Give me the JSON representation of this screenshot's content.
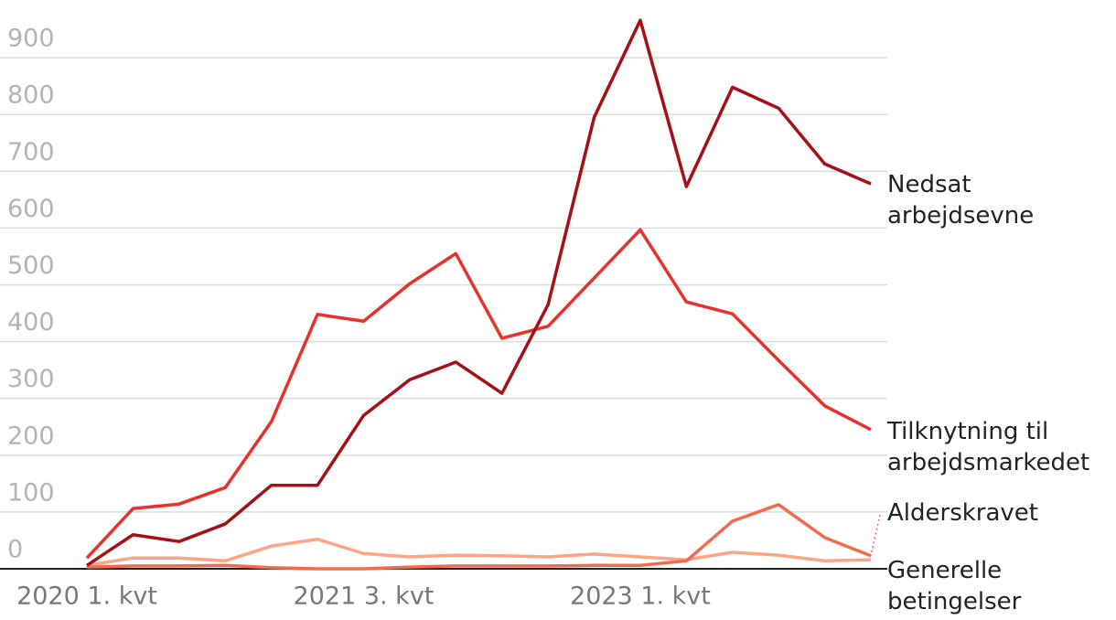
{
  "chart_data": {
    "type": "line",
    "categories": [
      "2020 1. kvt",
      null,
      null,
      null,
      null,
      null,
      "2021 3. kvt",
      null,
      null,
      null,
      null,
      null,
      "2023 1. kvt",
      null,
      null,
      null,
      null,
      null
    ],
    "series": [
      {
        "name": "Nedsat\narbejdsevne",
        "color": "#a50f15",
        "values": [
          6,
          60,
          48,
          79,
          147,
          147,
          270,
          333,
          364,
          309,
          465,
          795,
          966,
          673,
          848,
          811,
          713,
          678
        ]
      },
      {
        "name": "Tilknytning til\narbejdsmarkedet",
        "color": "#e8312a",
        "values": [
          19,
          106,
          114,
          143,
          259,
          448,
          436,
          502,
          555,
          406,
          427,
          512,
          597,
          470,
          449,
          367,
          287,
          245
        ]
      },
      {
        "name": "Alderskravet",
        "color": "#f26b4f",
        "values": [
          3,
          5,
          5,
          6,
          2,
          0,
          0,
          3,
          5,
          5,
          5,
          6,
          6,
          14,
          84,
          113,
          55,
          23
        ]
      },
      {
        "name": "Generelle\nbetingelser",
        "color": "#fca582",
        "values": [
          6,
          19,
          19,
          14,
          40,
          52,
          27,
          21,
          24,
          23,
          21,
          26,
          21,
          16,
          29,
          24,
          14,
          16
        ]
      }
    ],
    "ylim": [
      0,
      1000
    ],
    "yticks": [
      0,
      100,
      200,
      300,
      400,
      500,
      600,
      700,
      800,
      900
    ],
    "grid": true
  }
}
